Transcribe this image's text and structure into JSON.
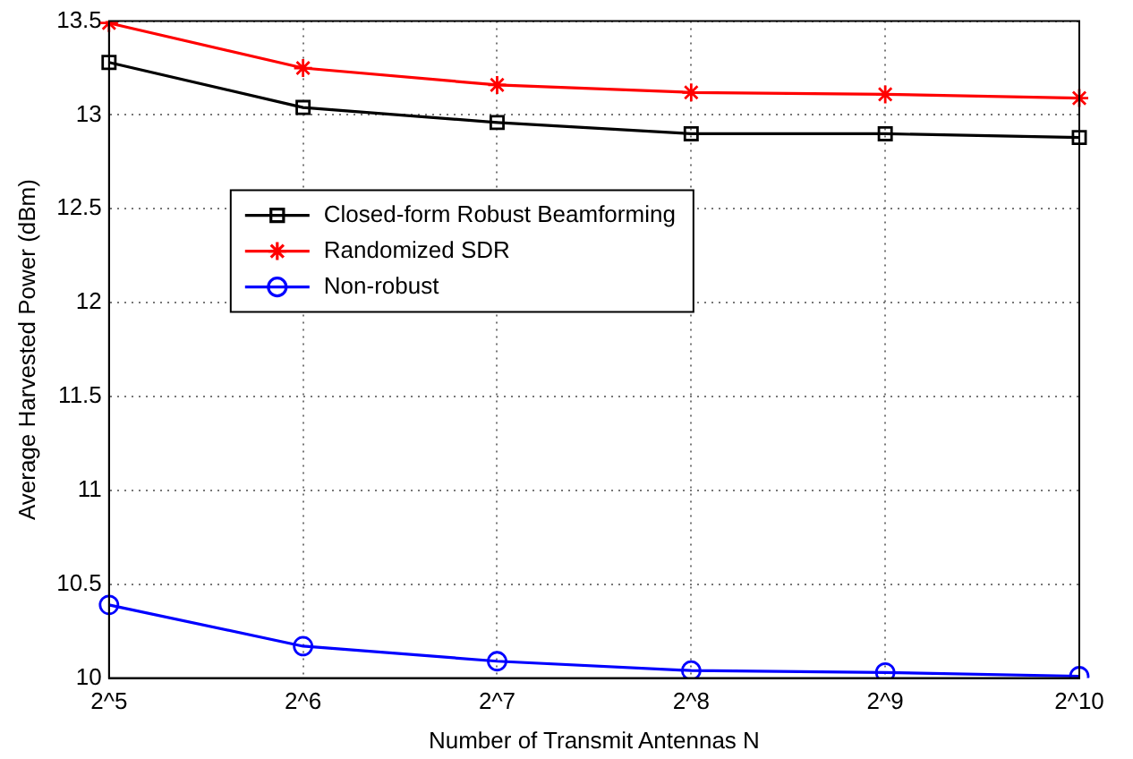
{
  "chart_data": {
    "type": "line",
    "xlabel": "Number of Transmit Antennas N",
    "ylabel": "Average Harvested Power (dBm)",
    "categories": [
      "2^5",
      "2^6",
      "2^7",
      "2^8",
      "2^9",
      "2^10"
    ],
    "series": [
      {
        "name": "Closed-form Robust Beamforming",
        "color": "#000000",
        "marker": "square",
        "values": [
          13.28,
          13.04,
          12.96,
          12.9,
          12.9,
          12.88
        ]
      },
      {
        "name": "Randomized SDR",
        "color": "#ff0000",
        "marker": "cross",
        "values": [
          13.49,
          13.25,
          13.16,
          13.12,
          13.11,
          13.09
        ]
      },
      {
        "name": "Non-robust",
        "color": "#0000ff",
        "marker": "circle",
        "values": [
          10.39,
          10.17,
          10.09,
          10.04,
          10.03,
          10.01
        ]
      }
    ],
    "ylim": [
      10,
      13.5
    ],
    "yticks": [
      10,
      10.5,
      11,
      11.5,
      12,
      12.5,
      13,
      13.5
    ],
    "grid": true,
    "legend": "center left",
    "line_style": "solid"
  }
}
